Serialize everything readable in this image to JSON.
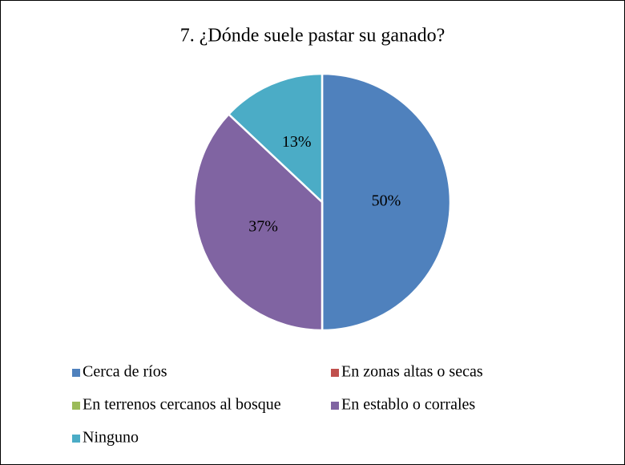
{
  "chart_data": {
    "type": "pie",
    "title": "7. ¿Dónde suele pastar su ganado?",
    "categories": [
      "Cerca de ríos",
      "En zonas altas o secas",
      "En terrenos cercanos al bosque",
      "En establo o corrales",
      "Ninguno"
    ],
    "values": [
      50,
      0,
      0,
      37,
      13
    ],
    "value_labels": [
      "50%",
      null,
      null,
      "37%",
      "13%"
    ],
    "colors": [
      "#4f81bd",
      "#c0504d",
      "#9bbb59",
      "#8064a2",
      "#4bacc6"
    ],
    "legend": "bottom"
  }
}
